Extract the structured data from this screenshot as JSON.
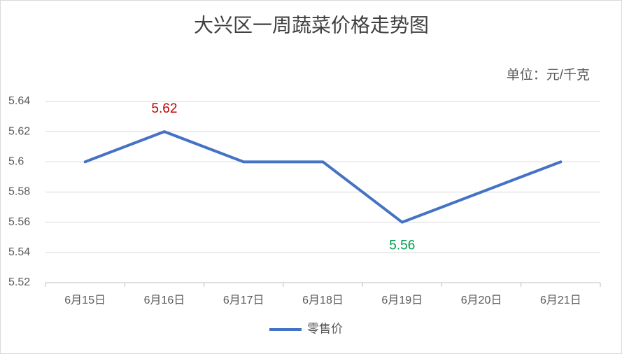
{
  "chart_data": {
    "type": "line",
    "title": "大兴区一周蔬菜价格走势图",
    "annotation": "单位：元/千克",
    "categories": [
      "6月15日",
      "6月16日",
      "6月17日",
      "6月18日",
      "6月19日",
      "6月20日",
      "6月21日"
    ],
    "series": [
      {
        "name": "零售价",
        "color": "#4472c4",
        "values": [
          5.6,
          5.62,
          5.6,
          5.6,
          5.56,
          5.58,
          5.6
        ]
      }
    ],
    "data_labels": [
      {
        "index": 1,
        "color": "#c00000"
      },
      {
        "index": 4,
        "color": "#00a050"
      }
    ],
    "ylim": [
      5.52,
      5.64
    ],
    "yticks": [
      5.52,
      5.54,
      5.56,
      5.58,
      5.6,
      5.62,
      5.64
    ],
    "grid": true,
    "legend": "bottom"
  }
}
